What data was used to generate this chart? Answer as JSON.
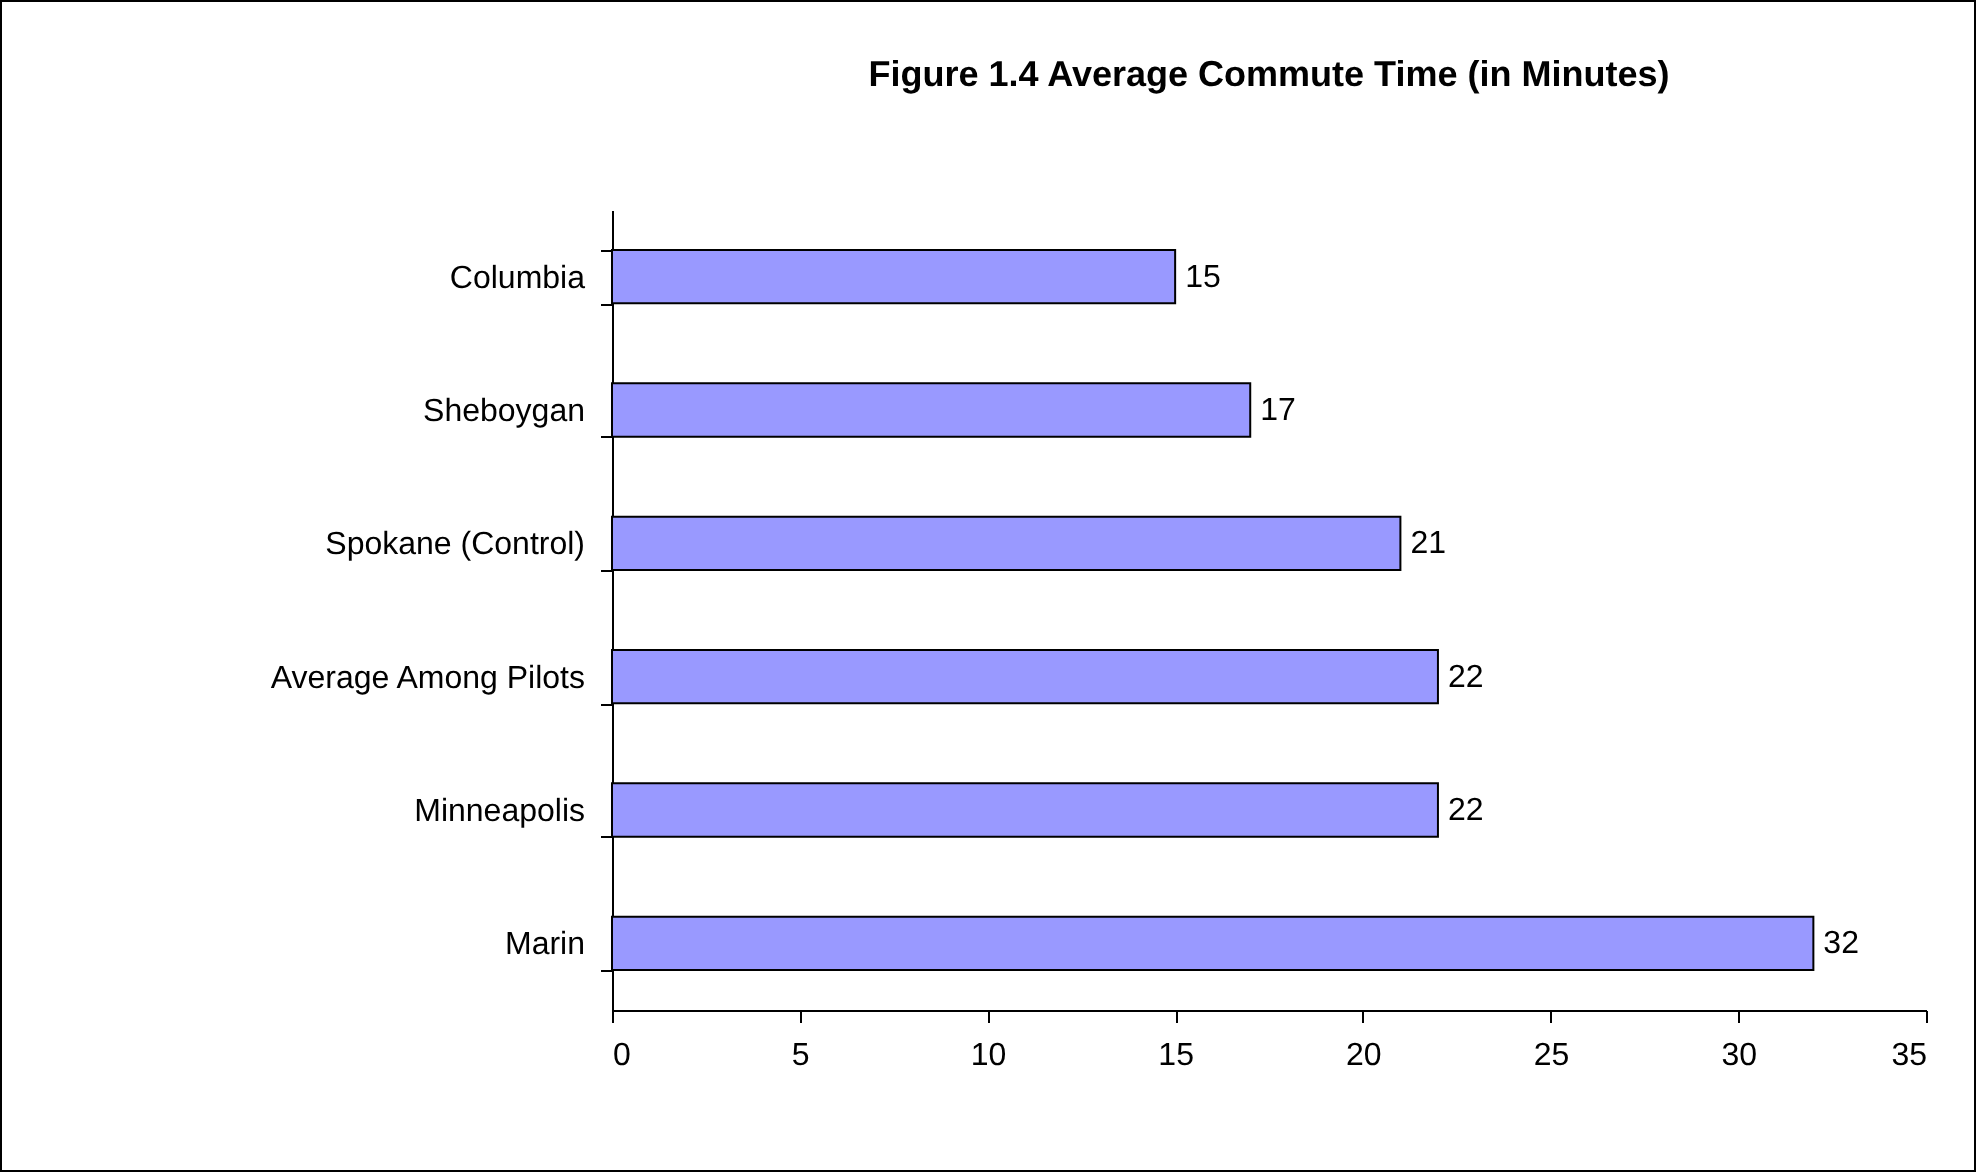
{
  "chart_data": {
    "type": "bar",
    "orientation": "horizontal",
    "title": "Figure 1.4 Average Commute Time (in Minutes)",
    "categories": [
      "Columbia",
      "Sheboygan",
      "Spokane (Control)",
      "Average Among Pilots",
      "Minneapolis",
      "Marin"
    ],
    "values": [
      15,
      17,
      21,
      22,
      22,
      32
    ],
    "color": "#9999ff",
    "xlim": [
      0,
      35
    ],
    "xticks": [
      0,
      5,
      10,
      15,
      20,
      25,
      30,
      35
    ],
    "grid": false,
    "data_labels": true
  }
}
